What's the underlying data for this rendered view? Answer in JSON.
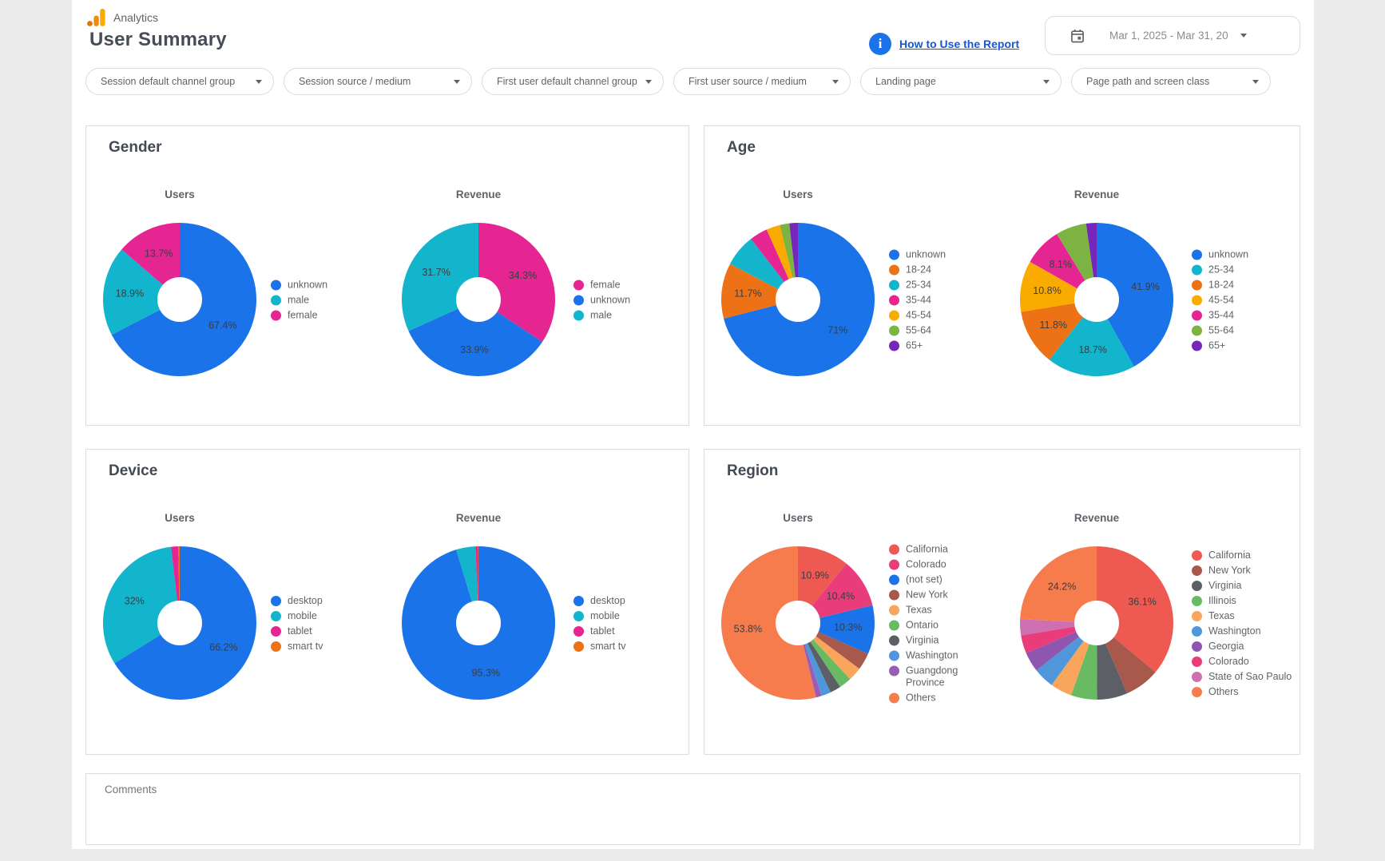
{
  "header": {
    "brand": "Analytics",
    "title": "User Summary",
    "help_link": "How to Use the Report",
    "date_range": "Mar 1, 2025 - Mar 31, 20"
  },
  "filters": [
    "Session default channel group",
    "Session source / medium",
    "First user default channel group",
    "First user source / medium",
    "Landing page",
    "Page path and screen class"
  ],
  "cards": [
    {
      "title": "Gender"
    },
    {
      "title": "Age"
    },
    {
      "title": "Device"
    },
    {
      "title": "Region"
    }
  ],
  "comments": {
    "label": "Comments"
  },
  "chart_data": [
    {
      "type": "pie",
      "card": "Gender",
      "metric": "Users",
      "legend_position": "right",
      "slices": [
        {
          "label": "unknown",
          "value": 67.4,
          "display": "67.4%",
          "color": "#1a73e8"
        },
        {
          "label": "male",
          "value": 18.9,
          "display": "18.9%",
          "color": "#12b5cb"
        },
        {
          "label": "female",
          "value": 13.7,
          "display": "13.7%",
          "color": "#e52592"
        }
      ]
    },
    {
      "type": "pie",
      "card": "Gender",
      "metric": "Revenue",
      "legend_position": "right",
      "slices": [
        {
          "label": "female",
          "value": 34.3,
          "display": "34.3%",
          "color": "#e52592"
        },
        {
          "label": "unknown",
          "value": 33.9,
          "display": "33.9%",
          "color": "#1a73e8"
        },
        {
          "label": "male",
          "value": 31.7,
          "display": "31.7%",
          "color": "#12b5cb"
        }
      ]
    },
    {
      "type": "pie",
      "card": "Age",
      "metric": "Users",
      "legend_position": "right",
      "slices": [
        {
          "label": "unknown",
          "value": 71.0,
          "display": "71%",
          "color": "#1a73e8"
        },
        {
          "label": "18-24",
          "value": 11.7,
          "display": "11.7%",
          "color": "#ed7115"
        },
        {
          "label": "25-34",
          "value": 6.8,
          "display": "",
          "color": "#12b5cb"
        },
        {
          "label": "35-44",
          "value": 3.8,
          "display": "",
          "color": "#e52592"
        },
        {
          "label": "45-54",
          "value": 2.9,
          "display": "",
          "color": "#f9ab00"
        },
        {
          "label": "55-64",
          "value": 2.0,
          "display": "",
          "color": "#7cb342"
        },
        {
          "label": "65+",
          "value": 1.8,
          "display": "",
          "color": "#7627bb"
        }
      ]
    },
    {
      "type": "pie",
      "card": "Age",
      "metric": "Revenue",
      "legend_position": "right",
      "slices": [
        {
          "label": "unknown",
          "value": 41.9,
          "display": "41.9%",
          "color": "#1a73e8"
        },
        {
          "label": "25-34",
          "value": 18.7,
          "display": "18.7%",
          "color": "#12b5cb"
        },
        {
          "label": "18-24",
          "value": 11.8,
          "display": "11.8%",
          "color": "#ed7115"
        },
        {
          "label": "45-54",
          "value": 10.8,
          "display": "10.8%",
          "color": "#f9ab00"
        },
        {
          "label": "35-44",
          "value": 8.1,
          "display": "8.1%",
          "color": "#e52592"
        },
        {
          "label": "55-64",
          "value": 6.5,
          "display": "",
          "color": "#7cb342"
        },
        {
          "label": "65+",
          "value": 2.2,
          "display": "",
          "color": "#7627bb"
        }
      ]
    },
    {
      "type": "pie",
      "card": "Device",
      "metric": "Users",
      "legend_position": "right",
      "slices": [
        {
          "label": "desktop",
          "value": 66.2,
          "display": "66.2%",
          "color": "#1a73e8"
        },
        {
          "label": "mobile",
          "value": 32.0,
          "display": "32%",
          "color": "#12b5cb"
        },
        {
          "label": "tablet",
          "value": 1.5,
          "display": "",
          "color": "#e52592"
        },
        {
          "label": "smart tv",
          "value": 0.3,
          "display": "",
          "color": "#ed7115"
        }
      ]
    },
    {
      "type": "pie",
      "card": "Device",
      "metric": "Revenue",
      "legend_position": "right",
      "slices": [
        {
          "label": "desktop",
          "value": 95.3,
          "display": "95.3%",
          "color": "#1a73e8"
        },
        {
          "label": "mobile",
          "value": 4.1,
          "display": "",
          "color": "#12b5cb"
        },
        {
          "label": "tablet",
          "value": 0.5,
          "display": "",
          "color": "#e52592"
        },
        {
          "label": "smart tv",
          "value": 0.1,
          "display": "",
          "color": "#ed7115"
        }
      ]
    },
    {
      "type": "pie",
      "card": "Region",
      "metric": "Users",
      "legend_position": "right",
      "slices": [
        {
          "label": "California",
          "value": 10.9,
          "display": "10.9%",
          "color": "#ee5a52"
        },
        {
          "label": "Colorado",
          "value": 10.4,
          "display": "10.4%",
          "color": "#e83d7a"
        },
        {
          "label": "(not set)",
          "value": 10.3,
          "display": "10.3%",
          "color": "#1a73e8"
        },
        {
          "label": "New York",
          "value": 3.6,
          "display": "",
          "color": "#a9584c"
        },
        {
          "label": "Texas",
          "value": 2.9,
          "display": "",
          "color": "#f9a55b"
        },
        {
          "label": "Ontario",
          "value": 2.6,
          "display": "",
          "color": "#68bb63"
        },
        {
          "label": "Virginia",
          "value": 2.3,
          "display": "",
          "color": "#5c6066"
        },
        {
          "label": "Washington",
          "value": 2.0,
          "display": "",
          "color": "#4f97da"
        },
        {
          "label": "Guangdong Province",
          "value": 1.2,
          "display": "",
          "color": "#9a5cb4"
        },
        {
          "label": "Others",
          "value": 53.8,
          "display": "53.8%",
          "color": "#f77c4d"
        }
      ]
    },
    {
      "type": "pie",
      "card": "Region",
      "metric": "Revenue",
      "legend_position": "right",
      "slices": [
        {
          "label": "California",
          "value": 36.1,
          "display": "36.1%",
          "color": "#ee5a52"
        },
        {
          "label": "New York",
          "value": 7.4,
          "display": "",
          "color": "#a9584c"
        },
        {
          "label": "Virginia",
          "value": 6.4,
          "display": "",
          "color": "#5c6066"
        },
        {
          "label": "Illinois",
          "value": 5.5,
          "display": "",
          "color": "#68bb63"
        },
        {
          "label": "Texas",
          "value": 4.6,
          "display": "",
          "color": "#f9a55b"
        },
        {
          "label": "Washington",
          "value": 4.4,
          "display": "",
          "color": "#4f97da"
        },
        {
          "label": "Georgia",
          "value": 4.2,
          "display": "",
          "color": "#8f56b0"
        },
        {
          "label": "Colorado",
          "value": 3.8,
          "display": "",
          "color": "#e83d7a"
        },
        {
          "label": "State of Sao Paulo",
          "value": 3.4,
          "display": "",
          "color": "#ce6fb2"
        },
        {
          "label": "Others",
          "value": 24.2,
          "display": "24.2%",
          "color": "#f77c4d"
        }
      ]
    }
  ]
}
